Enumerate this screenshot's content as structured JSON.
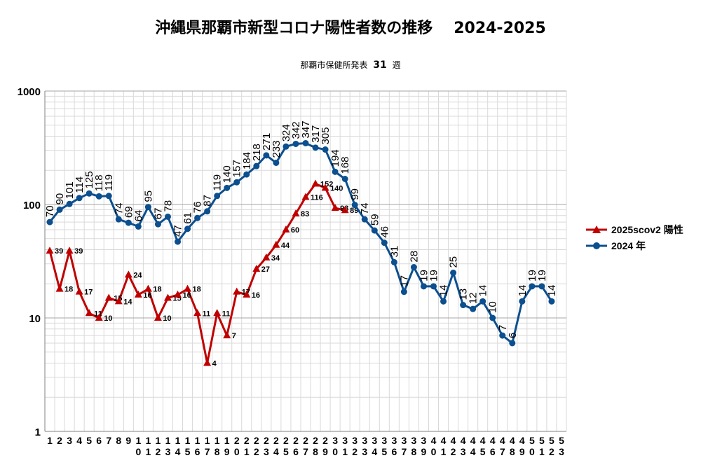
{
  "title": "沖縄県那覇市新型コロナ陽性者数の推移",
  "title_years": "2024-2025",
  "subtitle_prefix": "那覇市保健所発表",
  "subtitle_week": "31",
  "subtitle_suffix": "週",
  "colors": {
    "series2025": "#c00000",
    "series2024": "#0b4f8f",
    "grid_major": "#a6a6a6",
    "grid_minor": "#d9d9d9"
  },
  "chart_data": {
    "type": "line",
    "y_scale": "log",
    "ylim": [
      1,
      1000
    ],
    "y_ticks": [
      "1",
      "10",
      "100",
      "1000"
    ],
    "x_ticks": [
      "1",
      "2",
      "3",
      "4",
      "5",
      "6",
      "7",
      "8",
      "9",
      "10",
      "11",
      "12",
      "13",
      "14",
      "15",
      "16",
      "17",
      "18",
      "19",
      "20",
      "21",
      "22",
      "23",
      "24",
      "25",
      "26",
      "27",
      "28",
      "29",
      "30",
      "31",
      "32",
      "33",
      "34",
      "35",
      "36",
      "37",
      "38",
      "39",
      "40",
      "41",
      "42",
      "43",
      "44",
      "45",
      "46",
      "47",
      "48",
      "49",
      "50",
      "51",
      "52",
      "53"
    ],
    "grid": true,
    "legend_position": "right",
    "series": [
      {
        "name": "2025scov2 陽性",
        "marker": "triangle",
        "color": "#c00000",
        "x": [
          1,
          2,
          3,
          4,
          5,
          6,
          7,
          8,
          9,
          10,
          11,
          12,
          13,
          14,
          15,
          16,
          17,
          18,
          19,
          20,
          21,
          22,
          23,
          24,
          25,
          26,
          27,
          28,
          29,
          30,
          31
        ],
        "values": [
          39,
          18,
          39,
          17,
          11,
          10,
          15,
          14,
          24,
          16,
          18,
          10,
          15,
          16,
          18,
          11,
          4,
          11,
          7,
          17,
          16,
          27,
          34,
          44,
          60,
          83,
          116,
          152,
          140,
          93,
          89
        ]
      },
      {
        "name": "2024 年",
        "marker": "circle",
        "color": "#0b4f8f",
        "x": [
          1,
          2,
          3,
          4,
          5,
          6,
          7,
          8,
          9,
          10,
          11,
          12,
          13,
          14,
          15,
          16,
          17,
          18,
          19,
          20,
          21,
          22,
          23,
          24,
          25,
          26,
          27,
          28,
          29,
          30,
          31,
          32,
          33,
          34,
          35,
          36,
          37,
          38,
          39,
          40,
          41,
          42,
          43,
          44,
          45,
          46,
          47,
          48,
          49,
          50,
          51,
          52
        ],
        "values": [
          70,
          90,
          101,
          114,
          125,
          118,
          119,
          74,
          69,
          64,
          95,
          67,
          78,
          47,
          61,
          76,
          87,
          119,
          140,
          157,
          184,
          218,
          271,
          233,
          324,
          342,
          347,
          317,
          305,
          194,
          168,
          99,
          74,
          59,
          46,
          31,
          17,
          28,
          19,
          19,
          14,
          25,
          13,
          12,
          14,
          10,
          7,
          6,
          14,
          19,
          19,
          14
        ]
      }
    ]
  }
}
